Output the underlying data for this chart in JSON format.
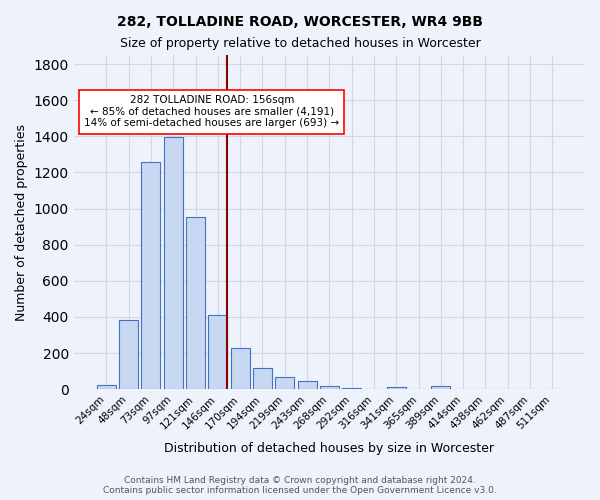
{
  "title1": "282, TOLLADINE ROAD, WORCESTER, WR4 9BB",
  "title2": "Size of property relative to detached houses in Worcester",
  "xlabel": "Distribution of detached houses by size in Worcester",
  "ylabel": "Number of detached properties",
  "categories": [
    "24sqm",
    "48sqm",
    "73sqm",
    "97sqm",
    "121sqm",
    "146sqm",
    "170sqm",
    "194sqm",
    "219sqm",
    "243sqm",
    "268sqm",
    "292sqm",
    "316sqm",
    "341sqm",
    "365sqm",
    "389sqm",
    "414sqm",
    "438sqm",
    "462sqm",
    "487sqm",
    "511sqm"
  ],
  "values": [
    25,
    385,
    1255,
    1395,
    955,
    410,
    230,
    115,
    65,
    47,
    15,
    5,
    3,
    10,
    3,
    18,
    0,
    0,
    0,
    0,
    0
  ],
  "bar_color": "#c8d8f0",
  "bar_edge_color": "#4472c4",
  "vline_color": "#8b0000",
  "annotation_line1": "282 TOLLADINE ROAD: 156sqm",
  "annotation_line2": "← 85% of detached houses are smaller (4,191)",
  "annotation_line3": "14% of semi-detached houses are larger (693) →",
  "annotation_box_edge": "red",
  "ylim": [
    0,
    1850
  ],
  "yticks": [
    0,
    200,
    400,
    600,
    800,
    1000,
    1200,
    1400,
    1600,
    1800
  ],
  "grid_color": "#d0d8e8",
  "bg_color": "#eef2fa",
  "footnote": "Contains HM Land Registry data © Crown copyright and database right 2024.\nContains public sector information licensed under the Open Government Licence v3.0."
}
